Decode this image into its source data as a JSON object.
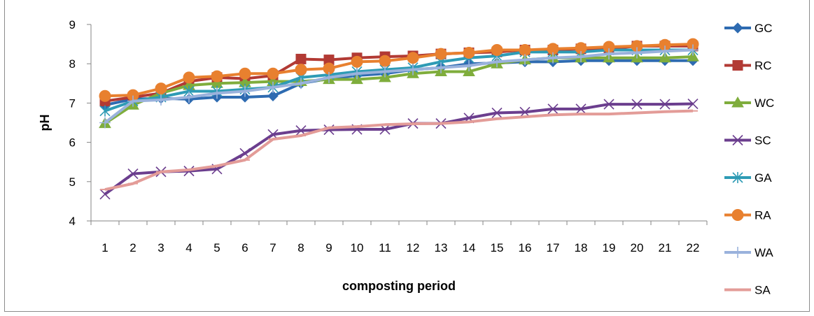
{
  "chart_data": {
    "type": "line",
    "title": "",
    "xlabel": "composting period",
    "ylabel": "pH",
    "ylim": [
      4,
      9
    ],
    "yticks": [
      4,
      5,
      6,
      7,
      8,
      9
    ],
    "categories": [
      "1",
      "2",
      "3",
      "4",
      "5",
      "6",
      "7",
      "8",
      "9",
      "10",
      "11",
      "12",
      "13",
      "14",
      "15",
      "16",
      "17",
      "18",
      "19",
      "20",
      "21",
      "22"
    ],
    "grid": false,
    "legend": "right",
    "series": [
      {
        "name": "GC",
        "color": "#2e6bb1",
        "marker": "diamond",
        "values": [
          6.95,
          7.1,
          7.12,
          7.1,
          7.15,
          7.15,
          7.18,
          7.5,
          7.62,
          7.7,
          7.75,
          7.85,
          7.9,
          8.0,
          8.02,
          8.05,
          8.05,
          8.08,
          8.08,
          8.08,
          8.08,
          8.08
        ]
      },
      {
        "name": "RC",
        "color": "#b23a34",
        "marker": "square",
        "values": [
          7.05,
          7.15,
          7.25,
          7.55,
          7.65,
          7.62,
          7.7,
          8.12,
          8.1,
          8.15,
          8.18,
          8.2,
          8.25,
          8.28,
          8.3,
          8.35,
          8.35,
          8.38,
          8.38,
          8.45,
          8.45,
          8.45
        ]
      },
      {
        "name": "WC",
        "color": "#7fad3c",
        "marker": "triangle",
        "values": [
          6.48,
          6.95,
          7.25,
          7.45,
          7.5,
          7.52,
          7.55,
          7.55,
          7.6,
          7.6,
          7.65,
          7.75,
          7.8,
          7.8,
          8.0,
          8.1,
          8.15,
          8.15,
          8.15,
          8.15,
          8.15,
          8.18
        ]
      },
      {
        "name": "SC",
        "color": "#6b3e8e",
        "marker": "x",
        "values": [
          4.68,
          5.2,
          5.25,
          5.27,
          5.32,
          5.72,
          6.2,
          6.3,
          6.32,
          6.33,
          6.33,
          6.48,
          6.48,
          6.62,
          6.75,
          6.77,
          6.85,
          6.85,
          6.97,
          6.97,
          6.97,
          6.98
        ]
      },
      {
        "name": "GA",
        "color": "#2e9bb5",
        "marker": "asterisk",
        "values": [
          6.8,
          7.05,
          7.15,
          7.3,
          7.3,
          7.35,
          7.4,
          7.65,
          7.72,
          7.8,
          7.85,
          7.9,
          8.05,
          8.15,
          8.2,
          8.3,
          8.3,
          8.3,
          8.35,
          8.35,
          8.35,
          8.35
        ]
      },
      {
        "name": "RA",
        "color": "#e8802f",
        "marker": "circle",
        "values": [
          7.18,
          7.2,
          7.37,
          7.65,
          7.68,
          7.75,
          7.75,
          7.85,
          7.88,
          8.05,
          8.07,
          8.15,
          8.25,
          8.28,
          8.35,
          8.35,
          8.38,
          8.4,
          8.43,
          8.45,
          8.48,
          8.5
        ]
      },
      {
        "name": "WA",
        "color": "#9ab2dc",
        "marker": "plus",
        "values": [
          6.5,
          7.05,
          7.08,
          7.15,
          7.25,
          7.3,
          7.4,
          7.5,
          7.65,
          7.75,
          7.8,
          7.85,
          7.9,
          7.95,
          8.05,
          8.1,
          8.15,
          8.18,
          8.25,
          8.28,
          8.32,
          8.35
        ]
      },
      {
        "name": "SA",
        "color": "#e39c98",
        "marker": "dash",
        "values": [
          4.8,
          4.95,
          5.25,
          5.3,
          5.4,
          5.55,
          6.08,
          6.17,
          6.37,
          6.4,
          6.45,
          6.47,
          6.48,
          6.52,
          6.6,
          6.65,
          6.7,
          6.72,
          6.72,
          6.75,
          6.78,
          6.8
        ]
      }
    ]
  }
}
